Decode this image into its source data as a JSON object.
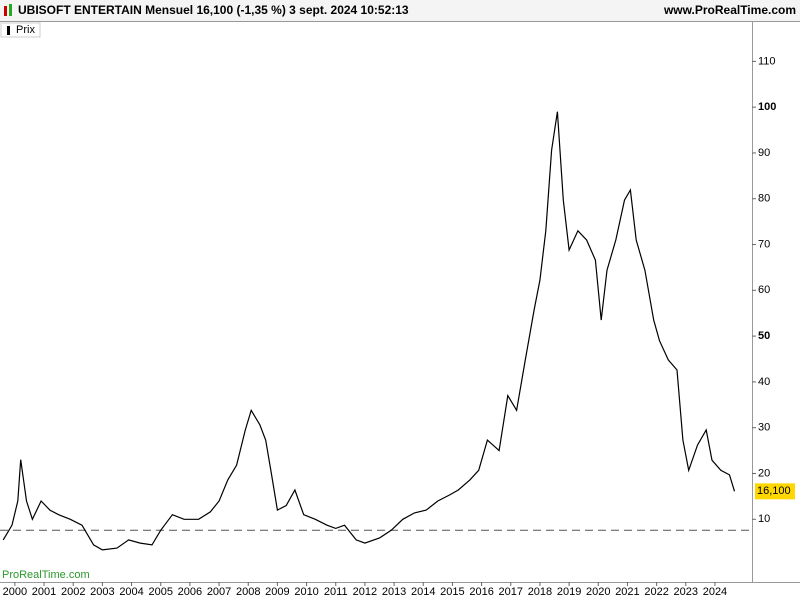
{
  "chart_data": {
    "type": "line",
    "title": "UBISOFT ENTERTAIN Mensuel 16,100 (-1,35 %) 3 sept. 2024 10:52:13",
    "source": "www.ProRealTime.com",
    "watermark": "ProRealTime.com",
    "series": [
      {
        "name": "Prix",
        "color": "#000000",
        "x": [
          1999.6,
          1999.9,
          2000.1,
          2000.2,
          2000.4,
          2000.6,
          2000.9,
          2001.2,
          2001.5,
          2001.9,
          2002.3,
          2002.7,
          2003.0,
          2003.5,
          2003.9,
          2004.3,
          2004.7,
          2005.0,
          2005.4,
          2005.8,
          2006.3,
          2006.7,
          2007.0,
          2007.3,
          2007.6,
          2007.9,
          2008.1,
          2008.4,
          2008.6,
          2008.8,
          2009.0,
          2009.3,
          2009.6,
          2009.9,
          2010.3,
          2010.7,
          2011.0,
          2011.3,
          2011.7,
          2012.0,
          2012.5,
          2012.9,
          2013.3,
          2013.7,
          2014.1,
          2014.5,
          2014.9,
          2015.2,
          2015.6,
          2015.9,
          2016.2,
          2016.6,
          2016.9,
          2017.2,
          2017.5,
          2017.8,
          2018.0,
          2018.2,
          2018.4,
          2018.6,
          2018.8,
          2019.0,
          2019.3,
          2019.6,
          2019.9,
          2020.1,
          2020.3,
          2020.6,
          2020.9,
          2021.1,
          2021.3,
          2021.6,
          2021.9,
          2022.1,
          2022.4,
          2022.7,
          2022.9,
          2023.1,
          2023.4,
          2023.7,
          2023.9,
          2024.2,
          2024.5,
          2024.67
        ],
        "values": [
          5.5,
          8.7,
          14,
          23,
          14,
          10,
          14,
          12,
          11,
          10,
          8.7,
          4.4,
          3.3,
          3.7,
          5.5,
          4.8,
          4.4,
          7.6,
          11,
          10,
          10,
          11.6,
          14,
          18.6,
          21.8,
          29.5,
          33.8,
          30.6,
          27.3,
          19.7,
          12,
          13,
          16.4,
          11,
          10,
          8.7,
          8,
          8.7,
          5.5,
          4.8,
          5.9,
          7.6,
          10,
          11.4,
          12,
          14,
          15.3,
          16.4,
          18.6,
          20.7,
          27.3,
          25,
          37,
          33.8,
          44.8,
          55.7,
          62.2,
          73,
          90.6,
          99,
          79.7,
          68.8,
          73,
          71,
          66.6,
          53.5,
          64.4,
          71,
          79.7,
          81.9,
          71,
          64.4,
          53.5,
          49,
          44.8,
          42.6,
          27.3,
          20.7,
          26.2,
          29.5,
          22.9,
          20.7,
          19.7,
          16.1
        ]
      }
    ],
    "last_value": 16.1,
    "last_value_label": "16,100",
    "last_value_color": "#ffd700",
    "reference_line": 7.6,
    "xlim": [
      1999.49,
      2025.27
    ],
    "xticks": [
      2000,
      2001,
      2002,
      2003,
      2004,
      2005,
      2006,
      2007,
      2008,
      2009,
      2010,
      2011,
      2012,
      2013,
      2014,
      2015,
      2016,
      2017,
      2018,
      2019,
      2020,
      2021,
      2022,
      2023,
      2024
    ],
    "ylim": [
      -3.7,
      118.6
    ],
    "yticks": [
      10,
      20,
      30,
      40,
      50,
      60,
      70,
      80,
      90,
      100,
      110
    ],
    "bold_ticks_every": 50
  }
}
